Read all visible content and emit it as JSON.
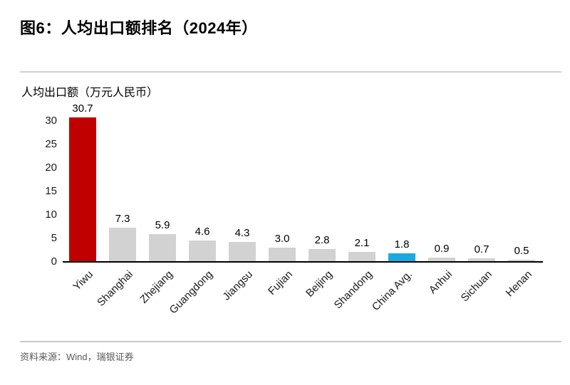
{
  "figure": {
    "title": "图6：人均出口额排名（2024年）"
  },
  "chart_data": {
    "type": "bar",
    "title": "图6：人均出口额排名（2024年）",
    "ylabel": "人均出口额（万元人民币）",
    "xlabel": "",
    "categories": [
      "Yiwu",
      "Shanghai",
      "Zhejiang",
      "Guangdong",
      "Jiangsu",
      "Fujian",
      "Beijing",
      "Shandong",
      "China Avg.",
      "Anhui",
      "Sichuan",
      "Henan"
    ],
    "values": [
      30.7,
      7.3,
      5.9,
      4.6,
      4.3,
      3.0,
      2.8,
      2.1,
      1.8,
      0.9,
      0.7,
      0.5
    ],
    "value_labels": [
      "30.7",
      "7.3",
      "5.9",
      "4.6",
      "4.3",
      "3.0",
      "2.8",
      "2.1",
      "1.8",
      "0.9",
      "0.7",
      "0.5"
    ],
    "bar_colors": [
      "#C00000",
      "#D2D2D2",
      "#D2D2D2",
      "#D2D2D2",
      "#D2D2D2",
      "#D2D2D2",
      "#D2D2D2",
      "#D2D2D2",
      "#1BA9E1",
      "#D2D2D2",
      "#D2D2D2",
      "#D2D2D2"
    ],
    "yticks": [
      0,
      5,
      10,
      15,
      20,
      25,
      30
    ],
    "ylim": [
      0,
      30
    ],
    "grid": false,
    "legend": null,
    "data_labels": true,
    "x_label_rotation_deg": -45
  },
  "footer": {
    "source": "资料来源：Wind，瑞银证券"
  },
  "colors": {
    "highlight_red": "#C00000",
    "highlight_blue": "#1BA9E1",
    "bar_gray": "#D2D2D2",
    "divider": "#D0D0D0",
    "source_text": "#595959",
    "axis_line": "#000000"
  }
}
